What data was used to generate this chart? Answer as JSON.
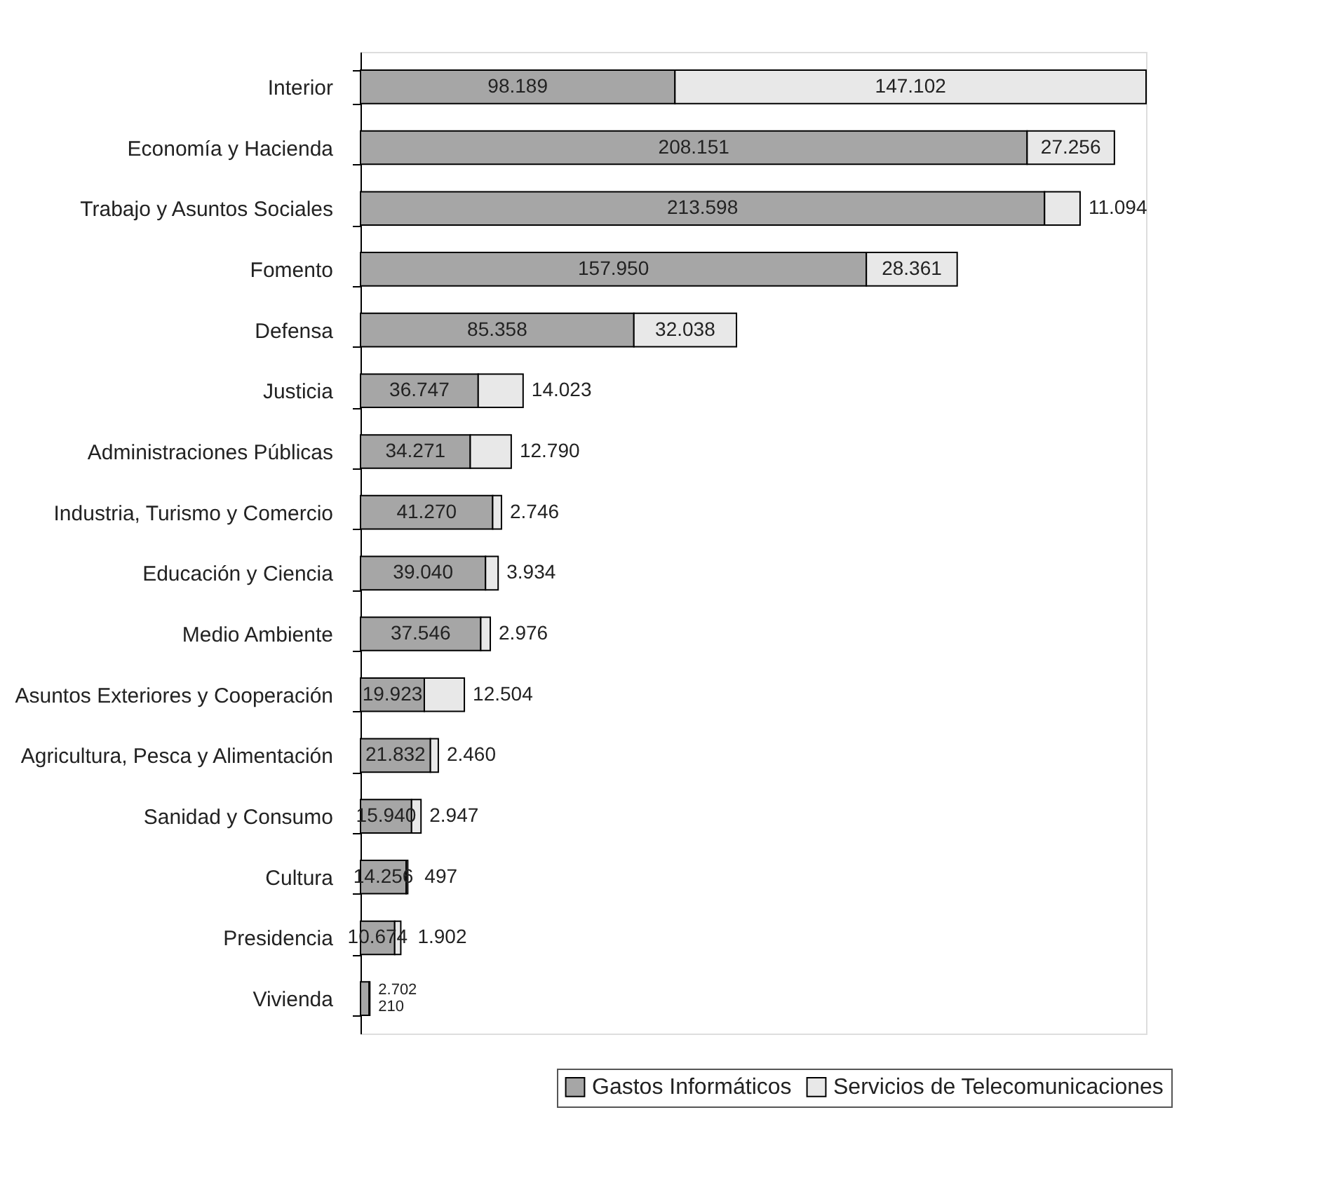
{
  "chart_data": {
    "type": "bar",
    "orientation": "horizontal",
    "stacked": true,
    "legend": "bottom right",
    "grid": false,
    "tick_labels": "y",
    "categories": [
      "Interior",
      "Economía y Hacienda",
      "Trabajo y Asuntos Sociales",
      "Fomento",
      "Defensa",
      "Justicia",
      "Administraciones Públicas",
      "Industria, Turismo y Comercio",
      "Educación y Ciencia",
      "Medio Ambiente",
      "Asuntos Exteriores y Cooperación",
      "Agricultura, Pesca y Alimentación",
      "Sanidad y Consumo",
      "Cultura",
      "Presidencia",
      "Vivienda"
    ],
    "series": [
      {
        "name": "Gastos Informáticos",
        "color": "#a6a6a6",
        "values": [
          98189,
          208151,
          213598,
          157950,
          85358,
          36747,
          34271,
          41270,
          39040,
          37546,
          19923,
          21832,
          15940,
          14256,
          10674,
          2702
        ],
        "value_labels": [
          "98.189",
          "208.151",
          "213.598",
          "157.950",
          "85.358",
          "36.747",
          "34.271",
          "41.270",
          "39.040",
          "37.546",
          "19.923",
          "21.832",
          "15.940",
          "14.256",
          "10.674",
          "2.702"
        ]
      },
      {
        "name": "Servicios de Telecomunicaciones",
        "color": "#e8e8e8",
        "values": [
          147102,
          27256,
          11094,
          28361,
          32038,
          14023,
          12790,
          2746,
          3934,
          2976,
          12504,
          2460,
          2947,
          497,
          1902,
          210
        ],
        "value_labels": [
          "147.102",
          "27.256",
          "11.094",
          "28.361",
          "32.038",
          "14.023",
          "12.790",
          "2.746",
          "3.934",
          "2.976",
          "12.504",
          "2.460",
          "2.947",
          "497",
          "1.902",
          "210"
        ]
      }
    ]
  }
}
